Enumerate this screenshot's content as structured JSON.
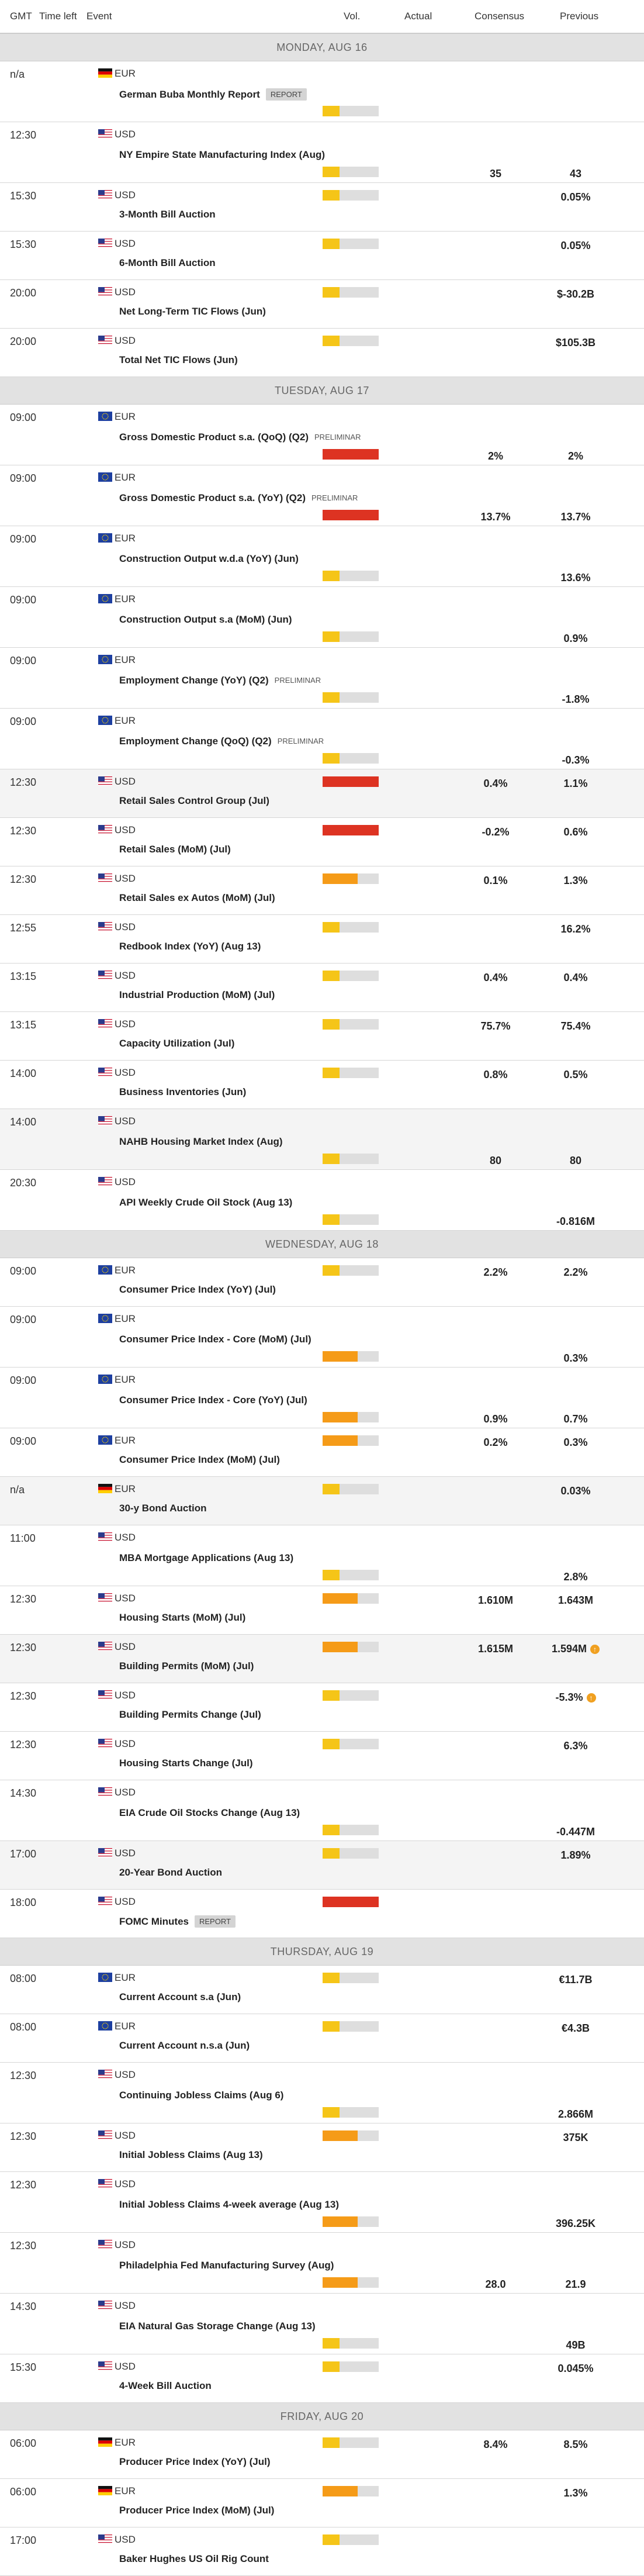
{
  "columns": [
    "GMT",
    "Time left",
    "Event",
    "Vol.",
    "Actual",
    "Consensus",
    "Previous"
  ],
  "days": [
    {
      "label": "MONDAY, AUG 16",
      "events": [
        {
          "time": "n/a",
          "flag": "DE",
          "currency": "EUR",
          "name": "German Buba Monthly Report",
          "badge": "REPORT",
          "badge_style": "box",
          "vol": "low",
          "tall": true
        },
        {
          "time": "12:30",
          "flag": "US",
          "currency": "USD",
          "name": "NY Empire State Manufacturing Index (Aug)",
          "vol": "low",
          "consensus": "35",
          "previous": "43",
          "tall": true
        },
        {
          "time": "15:30",
          "flag": "US",
          "currency": "USD",
          "name": "3-Month Bill Auction",
          "vol": "low",
          "previous": "0.05%"
        },
        {
          "time": "15:30",
          "flag": "US",
          "currency": "USD",
          "name": "6-Month Bill Auction",
          "vol": "low",
          "previous": "0.05%"
        },
        {
          "time": "20:00",
          "flag": "US",
          "currency": "USD",
          "name": "Net Long-Term TIC Flows (Jun)",
          "vol": "low",
          "previous": "$-30.2B"
        },
        {
          "time": "20:00",
          "flag": "US",
          "currency": "USD",
          "name": "Total Net TIC Flows (Jun)",
          "vol": "low",
          "previous": "$105.3B"
        }
      ]
    },
    {
      "label": "TUESDAY, AUG 17",
      "events": [
        {
          "time": "09:00",
          "flag": "EU",
          "currency": "EUR",
          "name": "Gross Domestic Product s.a. (QoQ) (Q2)",
          "badge": "PRELIMINAR",
          "vol": "high",
          "consensus": "2%",
          "previous": "2%",
          "tall": true
        },
        {
          "time": "09:00",
          "flag": "EU",
          "currency": "EUR",
          "name": "Gross Domestic Product s.a. (YoY) (Q2)",
          "badge": "PRELIMINAR",
          "vol": "high",
          "consensus": "13.7%",
          "previous": "13.7%",
          "tall": true
        },
        {
          "time": "09:00",
          "flag": "EU",
          "currency": "EUR",
          "name": "Construction Output w.d.a (YoY) (Jun)",
          "vol": "low",
          "previous": "13.6%",
          "tall": true
        },
        {
          "time": "09:00",
          "flag": "EU",
          "currency": "EUR",
          "name": "Construction Output s.a (MoM) (Jun)",
          "vol": "low",
          "previous": "0.9%",
          "tall": true
        },
        {
          "time": "09:00",
          "flag": "EU",
          "currency": "EUR",
          "name": "Employment Change (YoY) (Q2)",
          "badge": "PRELIMINAR",
          "vol": "low",
          "previous": "-1.8%",
          "tall": true
        },
        {
          "time": "09:00",
          "flag": "EU",
          "currency": "EUR",
          "name": "Employment Change (QoQ) (Q2)",
          "badge": "PRELIMINAR",
          "vol": "low",
          "previous": "-0.3%",
          "tall": true
        },
        {
          "time": "12:30",
          "flag": "US",
          "currency": "USD",
          "name": "Retail Sales Control Group (Jul)",
          "vol": "high",
          "consensus": "0.4%",
          "previous": "1.1%",
          "shaded": true
        },
        {
          "time": "12:30",
          "flag": "US",
          "currency": "USD",
          "name": "Retail Sales (MoM) (Jul)",
          "vol": "high",
          "consensus": "-0.2%",
          "previous": "0.6%"
        },
        {
          "time": "12:30",
          "flag": "US",
          "currency": "USD",
          "name": "Retail Sales ex Autos (MoM) (Jul)",
          "vol": "medium",
          "consensus": "0.1%",
          "previous": "1.3%"
        },
        {
          "time": "12:55",
          "flag": "US",
          "currency": "USD",
          "name": "Redbook Index (YoY) (Aug 13)",
          "vol": "low",
          "previous": "16.2%"
        },
        {
          "time": "13:15",
          "flag": "US",
          "currency": "USD",
          "name": "Industrial Production (MoM) (Jul)",
          "vol": "low",
          "consensus": "0.4%",
          "previous": "0.4%"
        },
        {
          "time": "13:15",
          "flag": "US",
          "currency": "USD",
          "name": "Capacity Utilization (Jul)",
          "vol": "low",
          "consensus": "75.7%",
          "previous": "75.4%"
        },
        {
          "time": "14:00",
          "flag": "US",
          "currency": "USD",
          "name": "Business Inventories (Jun)",
          "vol": "low",
          "consensus": "0.8%",
          "previous": "0.5%"
        },
        {
          "time": "14:00",
          "flag": "US",
          "currency": "USD",
          "name": "NAHB Housing Market Index (Aug)",
          "vol": "low",
          "consensus": "80",
          "previous": "80",
          "tall": true,
          "shaded": true
        },
        {
          "time": "20:30",
          "flag": "US",
          "currency": "USD",
          "name": "API Weekly Crude Oil Stock (Aug 13)",
          "vol": "low",
          "previous": "-0.816M",
          "tall": true
        }
      ]
    },
    {
      "label": "WEDNESDAY, AUG 18",
      "events": [
        {
          "time": "09:00",
          "flag": "EU",
          "currency": "EUR",
          "name": "Consumer Price Index (YoY) (Jul)",
          "vol": "low",
          "consensus": "2.2%",
          "previous": "2.2%"
        },
        {
          "time": "09:00",
          "flag": "EU",
          "currency": "EUR",
          "name": "Consumer Price Index - Core (MoM) (Jul)",
          "vol": "medium",
          "previous": "0.3%",
          "tall": true
        },
        {
          "time": "09:00",
          "flag": "EU",
          "currency": "EUR",
          "name": "Consumer Price Index - Core (YoY) (Jul)",
          "vol": "medium",
          "consensus": "0.9%",
          "previous": "0.7%",
          "tall": true
        },
        {
          "time": "09:00",
          "flag": "EU",
          "currency": "EUR",
          "name": "Consumer Price Index (MoM) (Jul)",
          "vol": "medium",
          "consensus": "0.2%",
          "previous": "0.3%"
        },
        {
          "time": "n/a",
          "flag": "DE",
          "currency": "EUR",
          "name": "30-y Bond Auction",
          "vol": "low",
          "previous": "0.03%",
          "shaded": true
        },
        {
          "time": "11:00",
          "flag": "US",
          "currency": "USD",
          "name": "MBA Mortgage Applications (Aug 13)",
          "vol": "low",
          "previous": "2.8%",
          "tall": true
        },
        {
          "time": "12:30",
          "flag": "US",
          "currency": "USD",
          "name": "Housing Starts (MoM) (Jul)",
          "vol": "medium",
          "consensus": "1.610M",
          "previous": "1.643M"
        },
        {
          "time": "12:30",
          "flag": "US",
          "currency": "USD",
          "name": "Building Permits (MoM) (Jul)",
          "vol": "medium",
          "consensus": "1.615M",
          "previous": "1.594M",
          "revised": true,
          "shaded": true
        },
        {
          "time": "12:30",
          "flag": "US",
          "currency": "USD",
          "name": "Building Permits Change (Jul)",
          "vol": "low",
          "previous": "-5.3%",
          "revised": true
        },
        {
          "time": "12:30",
          "flag": "US",
          "currency": "USD",
          "name": "Housing Starts Change (Jul)",
          "vol": "low",
          "previous": "6.3%"
        },
        {
          "time": "14:30",
          "flag": "US",
          "currency": "USD",
          "name": "EIA Crude Oil Stocks Change (Aug 13)",
          "vol": "low",
          "previous": "-0.447M",
          "tall": true
        },
        {
          "time": "17:00",
          "flag": "US",
          "currency": "USD",
          "name": "20-Year Bond Auction",
          "vol": "low",
          "previous": "1.89%",
          "shaded": true
        },
        {
          "time": "18:00",
          "flag": "US",
          "currency": "USD",
          "name": "FOMC Minutes",
          "badge": "REPORT",
          "badge_style": "box",
          "vol": "high"
        }
      ]
    },
    {
      "label": "THURSDAY, AUG 19",
      "events": [
        {
          "time": "08:00",
          "flag": "EU",
          "currency": "EUR",
          "name": "Current Account s.a (Jun)",
          "vol": "low",
          "previous": "€11.7B"
        },
        {
          "time": "08:00",
          "flag": "EU",
          "currency": "EUR",
          "name": "Current Account n.s.a (Jun)",
          "vol": "low",
          "previous": "€4.3B"
        },
        {
          "time": "12:30",
          "flag": "US",
          "currency": "USD",
          "name": "Continuing Jobless Claims (Aug 6)",
          "vol": "low",
          "previous": "2.866M",
          "tall": true
        },
        {
          "time": "12:30",
          "flag": "US",
          "currency": "USD",
          "name": "Initial Jobless Claims (Aug 13)",
          "vol": "medium",
          "previous": "375K"
        },
        {
          "time": "12:30",
          "flag": "US",
          "currency": "USD",
          "name": "Initial Jobless Claims 4-week average (Aug 13)",
          "vol": "medium",
          "previous": "396.25K",
          "tall": true
        },
        {
          "time": "12:30",
          "flag": "US",
          "currency": "USD",
          "name": "Philadelphia Fed Manufacturing Survey (Aug)",
          "vol": "medium",
          "consensus": "28.0",
          "previous": "21.9",
          "tall": true
        },
        {
          "time": "14:30",
          "flag": "US",
          "currency": "USD",
          "name": "EIA Natural Gas Storage Change (Aug 13)",
          "vol": "low",
          "previous": "49B",
          "tall": true
        },
        {
          "time": "15:30",
          "flag": "US",
          "currency": "USD",
          "name": "4-Week Bill Auction",
          "vol": "low",
          "previous": "0.045%"
        }
      ]
    },
    {
      "label": "FRIDAY, AUG 20",
      "events": [
        {
          "time": "06:00",
          "flag": "DE",
          "currency": "EUR",
          "name": "Producer Price Index (YoY) (Jul)",
          "vol": "low",
          "consensus": "8.4%",
          "previous": "8.5%"
        },
        {
          "time": "06:00",
          "flag": "DE",
          "currency": "EUR",
          "name": "Producer Price Index (MoM) (Jul)",
          "vol": "medium",
          "previous": "1.3%"
        },
        {
          "time": "17:00",
          "flag": "US",
          "currency": "USD",
          "name": "Baker Hughes US Oil Rig Count",
          "vol": "low"
        }
      ]
    }
  ]
}
